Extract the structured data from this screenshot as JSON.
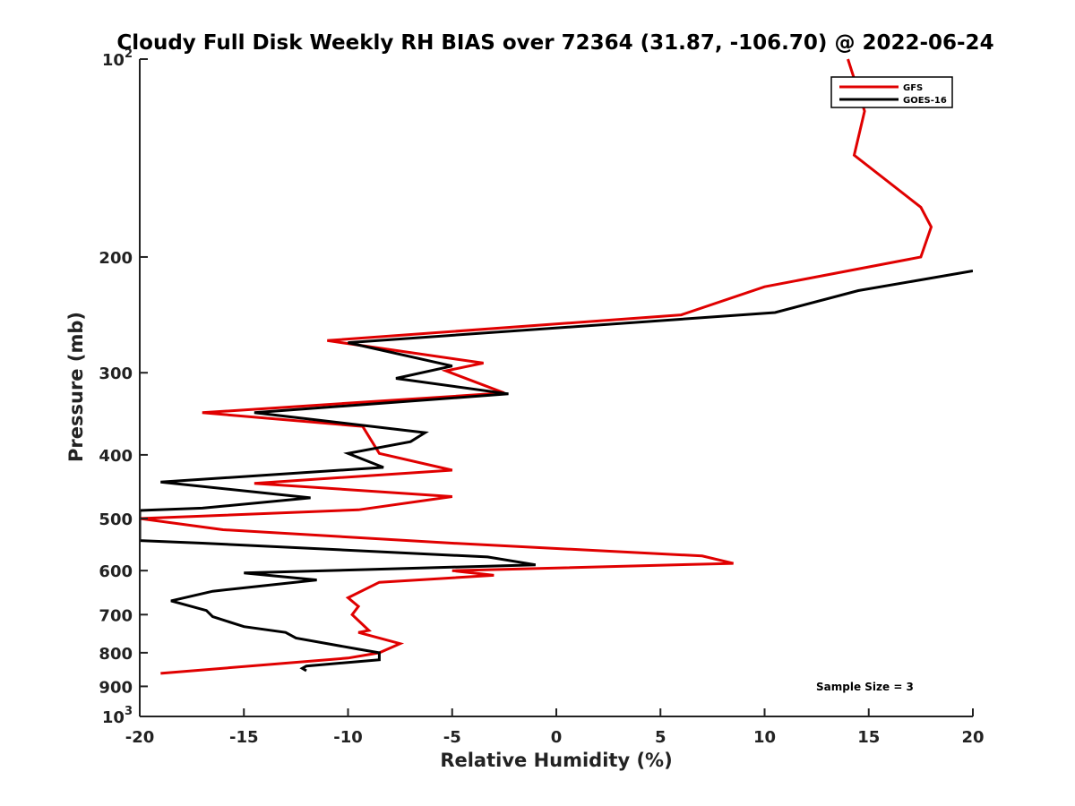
{
  "chart_data": {
    "type": "line",
    "title": "Cloudy Full Disk Weekly RH BIAS over 72364 (31.87, -106.70) @ 2022-06-24",
    "xlabel": "Relative Humidity (%)",
    "ylabel": "Pressure (mb)",
    "xlim": [
      -20,
      20
    ],
    "ylim": [
      100,
      1000
    ],
    "y_scale": "log",
    "y_reversed": true,
    "x_ticks": [
      -20,
      -15,
      -10,
      -5,
      0,
      5,
      10,
      15,
      20
    ],
    "x_tick_labels": [
      "-20",
      "-15",
      "-10",
      "-5",
      "0",
      "5",
      "10",
      "15",
      "20"
    ],
    "y_ticks": [
      100,
      200,
      300,
      400,
      500,
      600,
      700,
      800,
      900,
      1000
    ],
    "y_tick_labels": [
      {
        "base": "10",
        "exp": "2"
      },
      {
        "base": "200",
        "exp": ""
      },
      {
        "base": "300",
        "exp": ""
      },
      {
        "base": "400",
        "exp": ""
      },
      {
        "base": "500",
        "exp": ""
      },
      {
        "base": "600",
        "exp": ""
      },
      {
        "base": "700",
        "exp": ""
      },
      {
        "base": "800",
        "exp": ""
      },
      {
        "base": "900",
        "exp": ""
      },
      {
        "base": "10",
        "exp": "3"
      }
    ],
    "grid": false,
    "legend_position": "top-right",
    "annotation": "Sample Size = 3",
    "series": [
      {
        "name": "GFS",
        "color": "#e00000",
        "points": [
          [
            14.0,
            100
          ],
          [
            14.8,
            120
          ],
          [
            14.3,
            140
          ],
          [
            17.5,
            168
          ],
          [
            18.0,
            180
          ],
          [
            17.5,
            200
          ],
          [
            10.0,
            222
          ],
          [
            6.0,
            245
          ],
          [
            -11.0,
            268
          ],
          [
            -3.5,
            290
          ],
          [
            -5.3,
            298
          ],
          [
            -2.5,
            322
          ],
          [
            -17.0,
            345
          ],
          [
            -9.3,
            362
          ],
          [
            -8.5,
            398
          ],
          [
            -5.0,
            422
          ],
          [
            -14.5,
            442
          ],
          [
            -5.0,
            463
          ],
          [
            -9.5,
            485
          ],
          [
            -20.0,
            500
          ],
          [
            -16.0,
            520
          ],
          [
            -5.0,
            545
          ],
          [
            7.0,
            570
          ],
          [
            8.5,
            585
          ],
          [
            -5.0,
            600
          ],
          [
            -3.0,
            610
          ],
          [
            -8.5,
            625
          ],
          [
            -10.0,
            660
          ],
          [
            -9.5,
            680
          ],
          [
            -9.8,
            700
          ],
          [
            -9.0,
            740
          ],
          [
            -9.5,
            745
          ],
          [
            -7.5,
            775
          ],
          [
            -8.5,
            800
          ],
          [
            -10.0,
            815
          ],
          [
            -19.0,
            860
          ]
        ]
      },
      {
        "name": "GOES-16",
        "color": "#000000",
        "points": [
          [
            20.0,
            210
          ],
          [
            14.5,
            225
          ],
          [
            10.5,
            243
          ],
          [
            -10.0,
            270
          ],
          [
            -5.0,
            293
          ],
          [
            -7.7,
            306
          ],
          [
            -2.3,
            323
          ],
          [
            -14.5,
            345
          ],
          [
            -6.3,
            370
          ],
          [
            -7.0,
            382
          ],
          [
            -10.0,
            398
          ],
          [
            -8.3,
            418
          ],
          [
            -19.0,
            440
          ],
          [
            -11.8,
            465
          ],
          [
            -17.0,
            482
          ],
          [
            -20.0,
            486
          ],
          [
            -20.0,
            540
          ],
          [
            -17.0,
            545
          ],
          [
            -3.3,
            572
          ],
          [
            -1.0,
            588
          ],
          [
            -15.0,
            605
          ],
          [
            -11.5,
            620
          ],
          [
            -16.5,
            645
          ],
          [
            -18.5,
            667
          ],
          [
            -16.8,
            690
          ],
          [
            -16.5,
            705
          ],
          [
            -15.0,
            730
          ],
          [
            -13.0,
            745
          ],
          [
            -12.5,
            760
          ],
          [
            -9.5,
            790
          ],
          [
            -8.5,
            800
          ],
          [
            -8.5,
            820
          ],
          [
            -12.0,
            838
          ],
          [
            -12.2,
            845
          ],
          [
            -12.0,
            852
          ]
        ]
      }
    ]
  }
}
